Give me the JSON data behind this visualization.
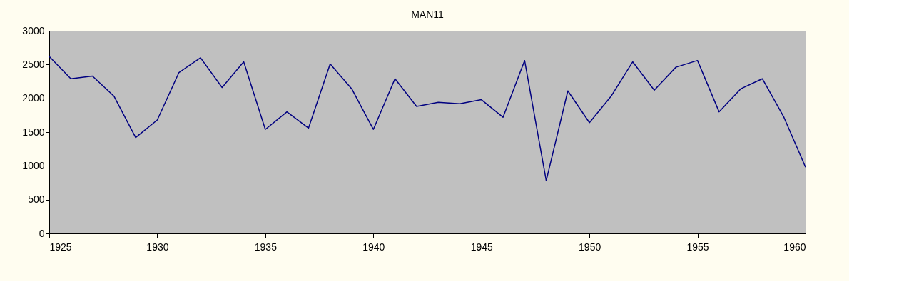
{
  "chart_data": {
    "type": "line",
    "title": "MAN11",
    "x": [
      1925,
      1926,
      1927,
      1928,
      1929,
      1930,
      1931,
      1932,
      1933,
      1934,
      1935,
      1936,
      1937,
      1938,
      1939,
      1940,
      1941,
      1942,
      1943,
      1944,
      1945,
      1946,
      1947,
      1948,
      1949,
      1950,
      1951,
      1952,
      1953,
      1954,
      1955,
      1956,
      1957,
      1958,
      1959,
      1960
    ],
    "series": [
      {
        "color": "#000080",
        "values": [
          2620,
          2290,
          2330,
          2030,
          1420,
          1680,
          2380,
          2600,
          2160,
          2540,
          1540,
          1800,
          1560,
          2510,
          2140,
          1540,
          2290,
          1880,
          1940,
          1920,
          1980,
          1720,
          2560,
          780,
          2110,
          1640,
          2030,
          2540,
          2120,
          2460,
          2560,
          1800,
          2140,
          2290,
          1720,
          980
        ]
      }
    ],
    "xlim": [
      1925,
      1960
    ],
    "xticks": [
      1925,
      1930,
      1935,
      1940,
      1945,
      1950,
      1955,
      1960
    ],
    "ylim": [
      0,
      3000
    ],
    "yticks": [
      0,
      500,
      1000,
      1500,
      2000,
      2500,
      3000
    ],
    "grid": false,
    "legend": false,
    "marker": "none",
    "line_style": "solid"
  }
}
